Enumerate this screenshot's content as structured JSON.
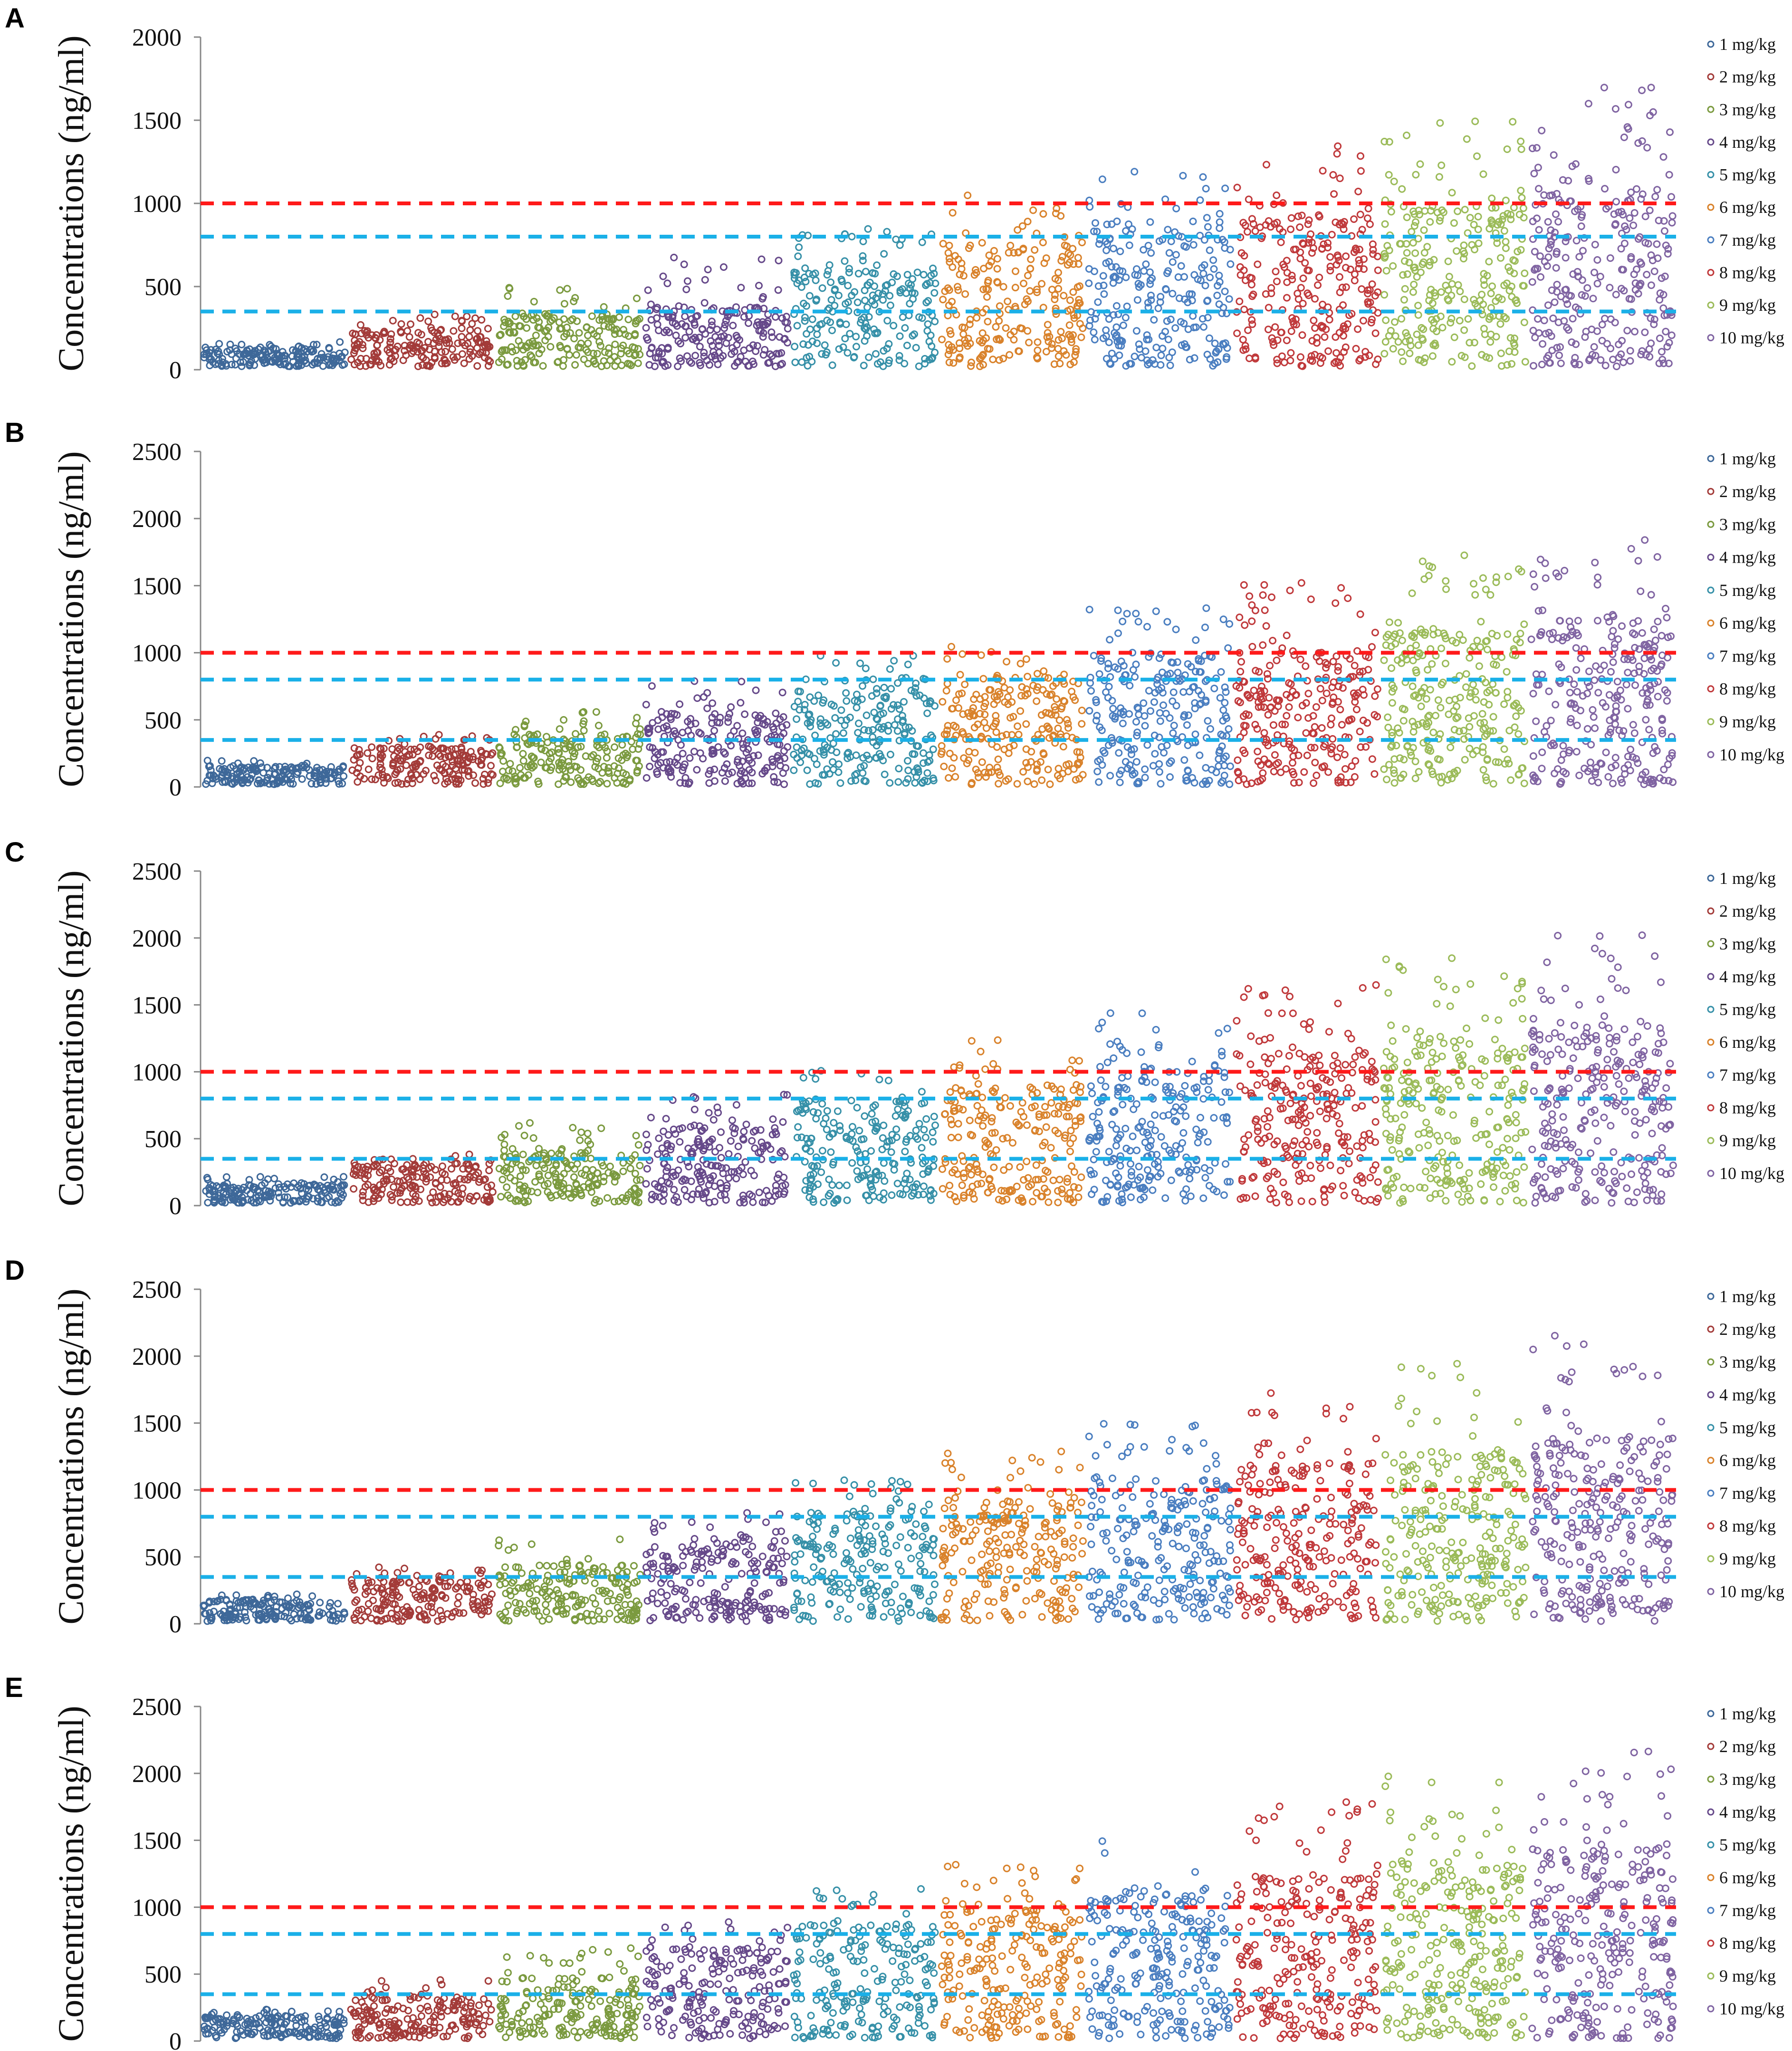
{
  "chart_data": [
    {
      "type": "scatter",
      "panel": "A",
      "ylabel": "Concentrations (ng/ml)",
      "ylim": [
        0,
        2000
      ],
      "yticks": [
        "0",
        "500",
        "1000",
        "1500",
        "2000"
      ],
      "reference_lines": [
        {
          "value": 1000,
          "color": "#FF1A1A"
        },
        {
          "value": 800,
          "color": "#1AB0E8"
        },
        {
          "value": 350,
          "color": "#1AB0E8"
        }
      ],
      "groups": [
        {
          "name": "1 mg/kg",
          "core": 130,
          "max": 170
        },
        {
          "name": "2 mg/kg",
          "core": 250,
          "max": 340
        },
        {
          "name": "3 mg/kg",
          "core": 340,
          "max": 510
        },
        {
          "name": "4 mg/kg",
          "core": 380,
          "max": 700
        },
        {
          "name": "5 mg/kg",
          "core": 600,
          "max": 860
        },
        {
          "name": "6 mg/kg",
          "core": 750,
          "max": 1050
        },
        {
          "name": "7 mg/kg",
          "core": 900,
          "max": 1200
        },
        {
          "name": "8 mg/kg",
          "core": 950,
          "max": 1380
        },
        {
          "name": "9 mg/kg",
          "core": 1000,
          "max": 1550
        },
        {
          "name": "10 mg/kg",
          "core": 1100,
          "max": 1730
        }
      ]
    },
    {
      "type": "scatter",
      "panel": "B",
      "ylabel": "Concentrations (ng/ml)",
      "ylim": [
        0,
        2500
      ],
      "yticks": [
        "0",
        "500",
        "1000",
        "1500",
        "2000",
        "2500"
      ],
      "reference_lines": [
        {
          "value": 1000,
          "color": "#FF1A1A"
        },
        {
          "value": 800,
          "color": "#1AB0E8"
        },
        {
          "value": 350,
          "color": "#1AB0E8"
        }
      ],
      "groups": [
        {
          "name": "1 mg/kg",
          "core": 160,
          "max": 200
        },
        {
          "name": "2 mg/kg",
          "core": 300,
          "max": 390
        },
        {
          "name": "3 mg/kg",
          "core": 400,
          "max": 560
        },
        {
          "name": "4 mg/kg",
          "core": 550,
          "max": 800
        },
        {
          "name": "5 mg/kg",
          "core": 750,
          "max": 990
        },
        {
          "name": "6 mg/kg",
          "core": 850,
          "max": 1160
        },
        {
          "name": "7 mg/kg",
          "core": 1000,
          "max": 1340
        },
        {
          "name": "8 mg/kg",
          "core": 1050,
          "max": 1540
        },
        {
          "name": "9 mg/kg",
          "core": 1150,
          "max": 1730
        },
        {
          "name": "10 mg/kg",
          "core": 1250,
          "max": 1920
        }
      ]
    },
    {
      "type": "scatter",
      "panel": "C",
      "ylabel": "Concentrations (ng/ml)",
      "ylim": [
        0,
        2500
      ],
      "yticks": [
        "0",
        "500",
        "1000",
        "1500",
        "2000",
        "2500"
      ],
      "reference_lines": [
        {
          "value": 1000,
          "color": "#FF1A1A"
        },
        {
          "value": 800,
          "color": "#1AB0E8"
        },
        {
          "value": 350,
          "color": "#1AB0E8"
        }
      ],
      "groups": [
        {
          "name": "1 mg/kg",
          "core": 170,
          "max": 220
        },
        {
          "name": "2 mg/kg",
          "core": 320,
          "max": 410
        },
        {
          "name": "3 mg/kg",
          "core": 420,
          "max": 620
        },
        {
          "name": "4 mg/kg",
          "core": 600,
          "max": 830
        },
        {
          "name": "5 mg/kg",
          "core": 800,
          "max": 1040
        },
        {
          "name": "6 mg/kg",
          "core": 900,
          "max": 1240
        },
        {
          "name": "7 mg/kg",
          "core": 1050,
          "max": 1450
        },
        {
          "name": "8 mg/kg",
          "core": 1150,
          "max": 1650
        },
        {
          "name": "9 mg/kg",
          "core": 1250,
          "max": 1850
        },
        {
          "name": "10 mg/kg",
          "core": 1350,
          "max": 2060
        }
      ]
    },
    {
      "type": "scatter",
      "panel": "D",
      "ylabel": "Concentrations (ng/ml)",
      "ylim": [
        0,
        2500
      ],
      "yticks": [
        "0",
        "500",
        "1000",
        "1500",
        "2000",
        "2500"
      ],
      "reference_lines": [
        {
          "value": 1000,
          "color": "#FF1A1A"
        },
        {
          "value": 800,
          "color": "#1AB0E8"
        },
        {
          "value": 350,
          "color": "#1AB0E8"
        }
      ],
      "groups": [
        {
          "name": "1 mg/kg",
          "core": 180,
          "max": 230
        },
        {
          "name": "2 mg/kg",
          "core": 330,
          "max": 430
        },
        {
          "name": "3 mg/kg",
          "core": 450,
          "max": 650
        },
        {
          "name": "4 mg/kg",
          "core": 650,
          "max": 860
        },
        {
          "name": "5 mg/kg",
          "core": 850,
          "max": 1090
        },
        {
          "name": "6 mg/kg",
          "core": 950,
          "max": 1300
        },
        {
          "name": "7 mg/kg",
          "core": 1100,
          "max": 1500
        },
        {
          "name": "8 mg/kg",
          "core": 1200,
          "max": 1750
        },
        {
          "name": "9 mg/kg",
          "core": 1300,
          "max": 1950
        },
        {
          "name": "10 mg/kg",
          "core": 1400,
          "max": 2180
        }
      ]
    },
    {
      "type": "scatter",
      "panel": "E",
      "ylabel": "Concentrations (ng/ml)",
      "ylim": [
        0,
        2500
      ],
      "yticks": [
        "0",
        "500",
        "1000",
        "1500",
        "2000",
        "2500"
      ],
      "reference_lines": [
        {
          "value": 1000,
          "color": "#FF1A1A"
        },
        {
          "value": 800,
          "color": "#1AB0E8"
        },
        {
          "value": 350,
          "color": "#1AB0E8"
        }
      ],
      "groups": [
        {
          "name": "1 mg/kg",
          "core": 190,
          "max": 240
        },
        {
          "name": "2 mg/kg",
          "core": 350,
          "max": 460
        },
        {
          "name": "3 mg/kg",
          "core": 480,
          "max": 700
        },
        {
          "name": "4 mg/kg",
          "core": 700,
          "max": 900
        },
        {
          "name": "5 mg/kg",
          "core": 880,
          "max": 1140
        },
        {
          "name": "6 mg/kg",
          "core": 1000,
          "max": 1370
        },
        {
          "name": "7 mg/kg",
          "core": 1150,
          "max": 1560
        },
        {
          "name": "8 mg/kg",
          "core": 1250,
          "max": 1820
        },
        {
          "name": "9 mg/kg",
          "core": 1350,
          "max": 2050
        },
        {
          "name": "10 mg/kg",
          "core": 1450,
          "max": 2270
        }
      ]
    }
  ],
  "colors": [
    "#3E6899",
    "#A33B39",
    "#7B9A3F",
    "#66498A",
    "#3690A8",
    "#D9822B",
    "#4A7EC0",
    "#C0393B",
    "#9BBB59",
    "#8064A2"
  ]
}
